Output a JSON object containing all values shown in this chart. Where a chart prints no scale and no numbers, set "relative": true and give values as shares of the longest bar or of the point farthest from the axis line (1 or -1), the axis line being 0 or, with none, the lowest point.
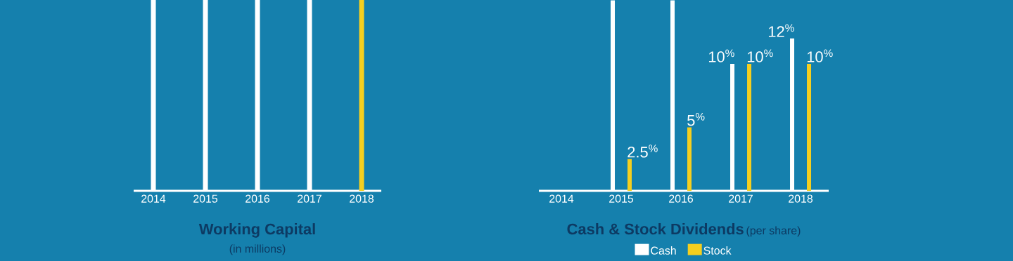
{
  "chart_data": [
    {
      "type": "bar",
      "title": "Working Capital",
      "subtitle": "(in millions)",
      "categories": [
        "2014",
        "2015",
        "2016",
        "2017",
        "2018"
      ],
      "values": [
        1,
        1,
        1,
        1,
        1
      ],
      "colors": [
        "#ffffff",
        "#ffffff",
        "#ffffff",
        "#ffffff",
        "#f5cf1f"
      ],
      "relative": true
    },
    {
      "type": "bar",
      "title": "Cash & Stock Dividends",
      "subtitle": "(per share)",
      "categories": [
        "2014",
        "2015",
        "2016",
        "2017",
        "2018"
      ],
      "series": [
        {
          "name": "Cash",
          "color": "#ffffff",
          "values": [
            null,
            15,
            15,
            10,
            12
          ],
          "value_labels": [
            null,
            null,
            null,
            "10$^{%}$",
            "12$^{%}$"
          ]
        },
        {
          "name": "Stock",
          "color": "#f5cf1f",
          "values": [
            null,
            2.5,
            5,
            10,
            10
          ],
          "value_labels": [
            null,
            "2.5$^{%}$",
            "5$^{%}$",
            "10$^{%}$",
            "10$^{%}$"
          ]
        }
      ],
      "legend": "bottom"
    }
  ]
}
